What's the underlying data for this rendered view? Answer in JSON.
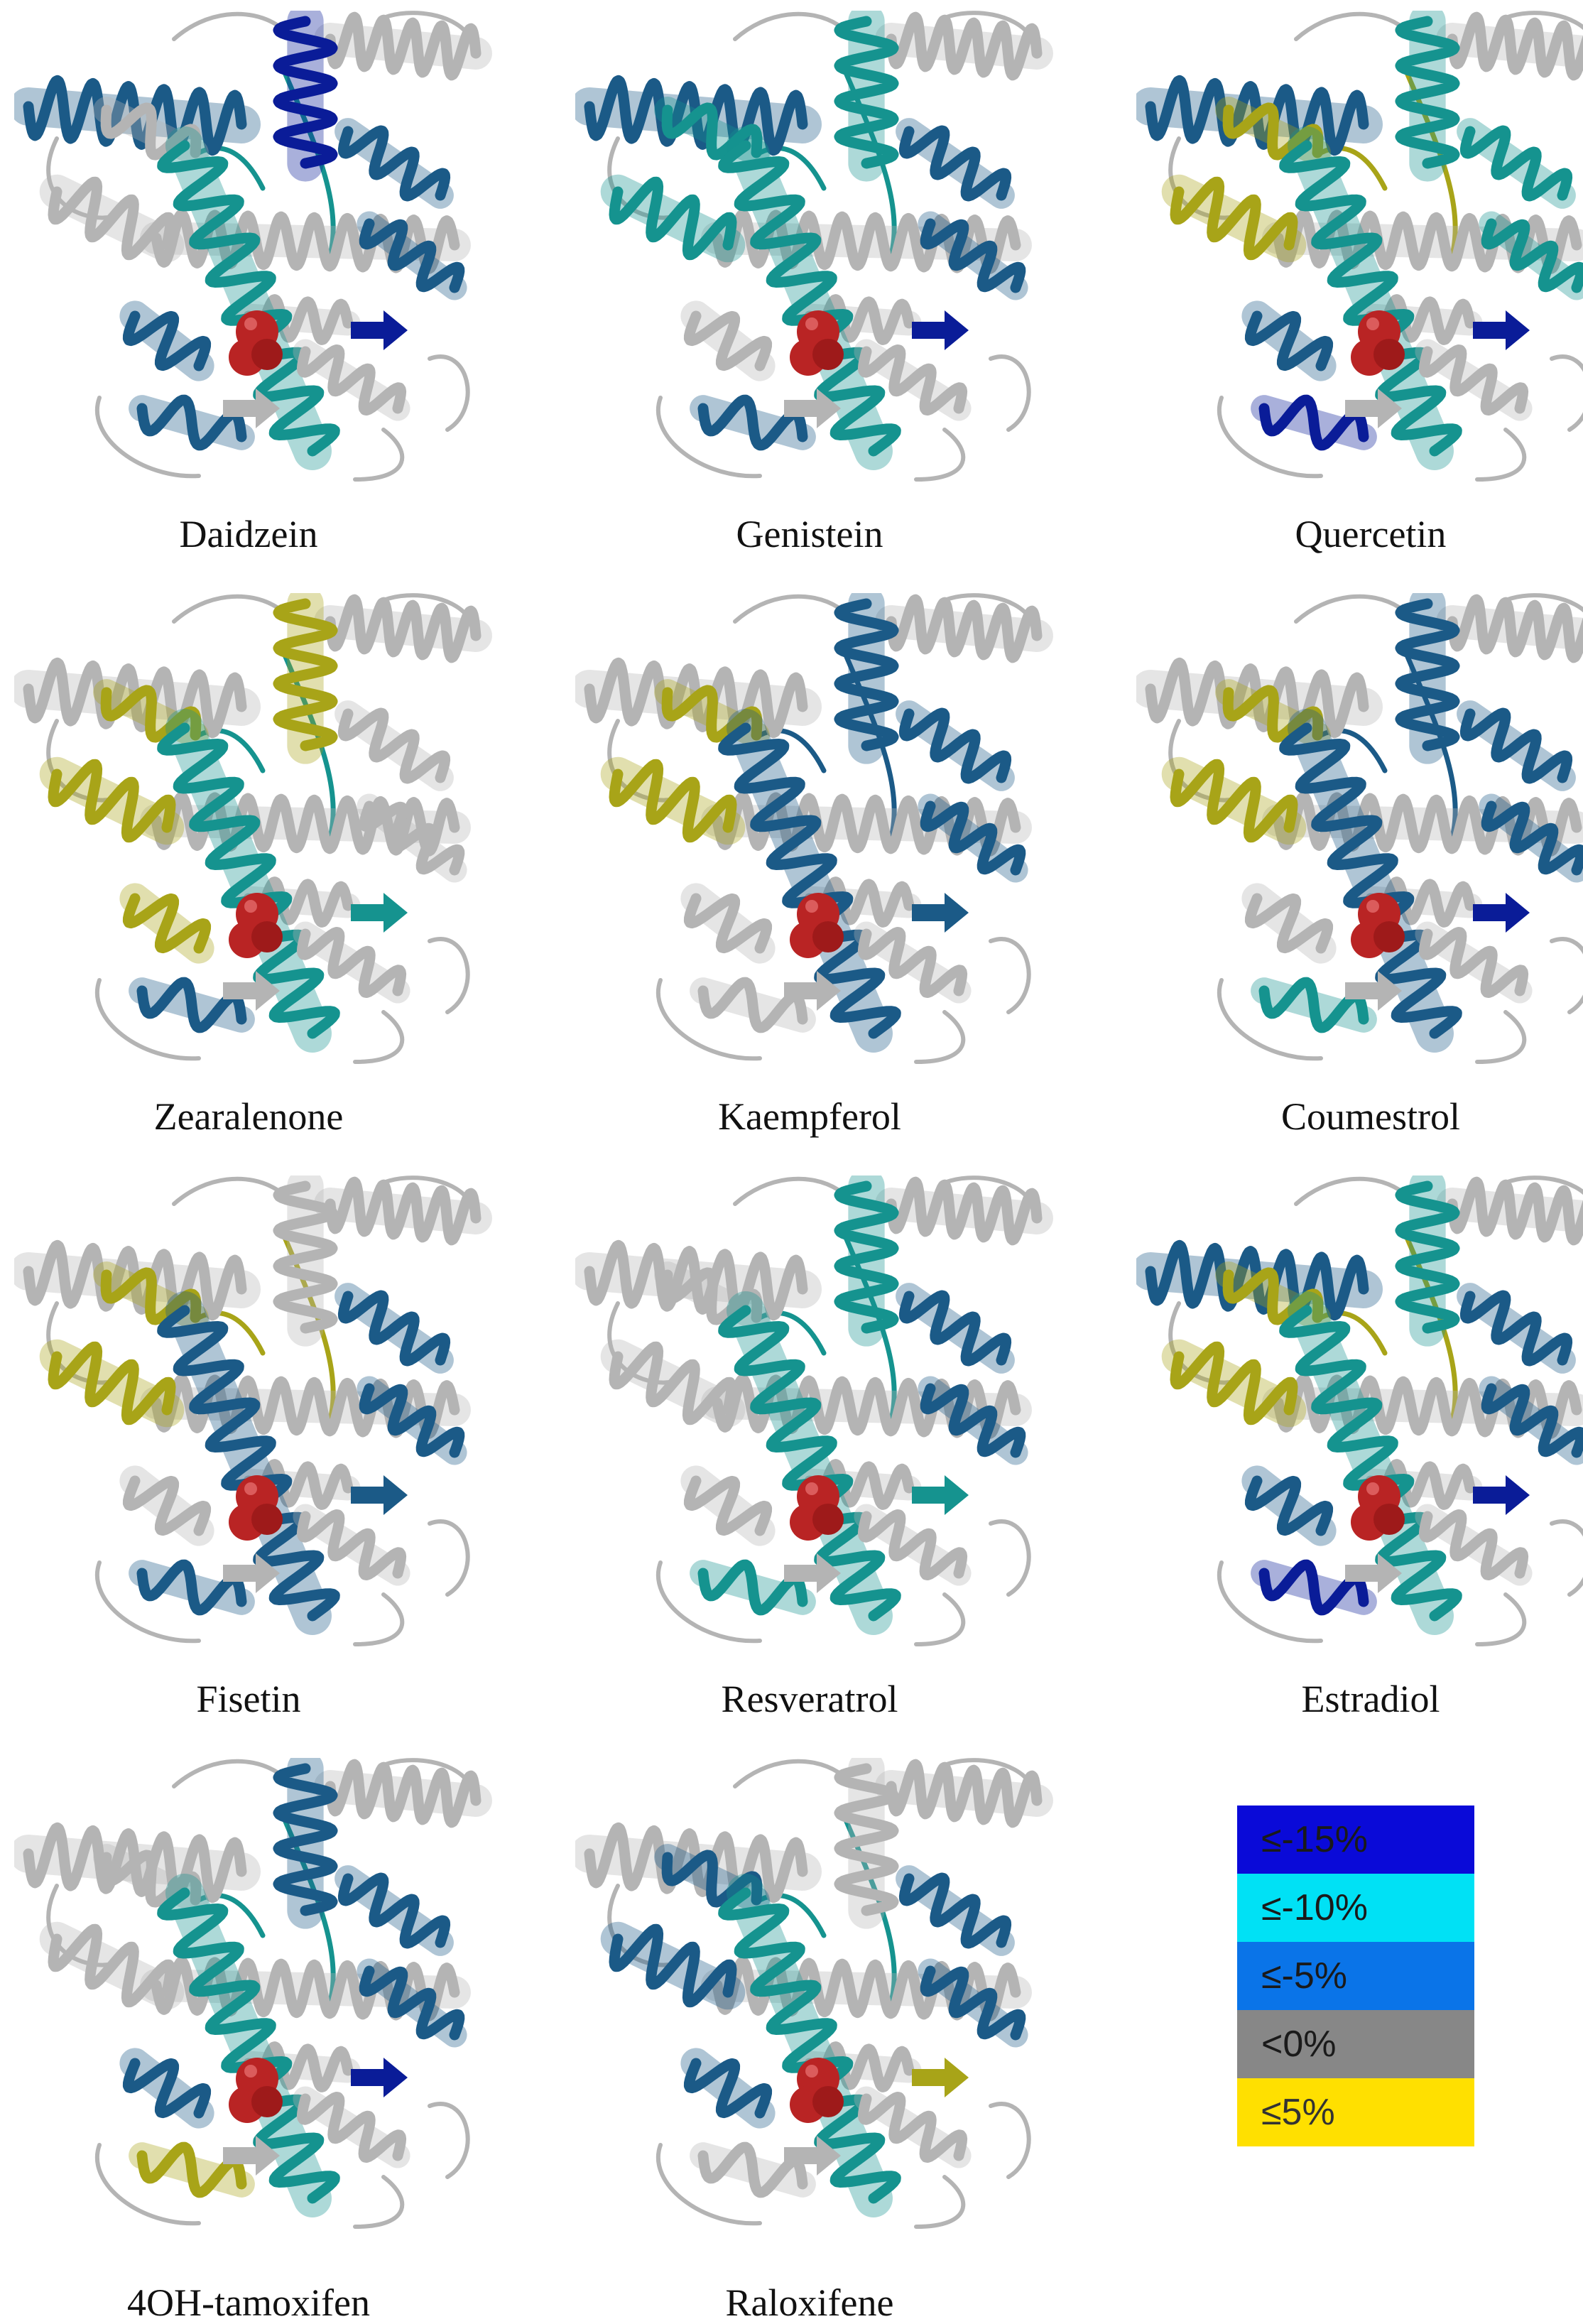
{
  "colors": {
    "gray": "#b4b4b4",
    "teal": "#15938f",
    "blue": "#1b5a87",
    "navy": "#0a1c98",
    "olive": "#a8a418",
    "ligand": "#b92424"
  },
  "panels": [
    {
      "label": "Daidzein",
      "tones": {
        "top": "blue",
        "center": "navy",
        "left": "gray",
        "main": "teal",
        "right": "blue",
        "low": "blue",
        "loop": "teal",
        "strand": "navy",
        "coil": "blue"
      }
    },
    {
      "label": "Genistein",
      "tones": {
        "top": "blue",
        "center": "teal",
        "left": "teal",
        "main": "teal",
        "right": "blue",
        "low": "gray",
        "loop": "teal",
        "strand": "navy",
        "coil": "blue"
      }
    },
    {
      "label": "Quercetin",
      "tones": {
        "top": "blue",
        "center": "teal",
        "left": "olive",
        "main": "teal",
        "right": "teal",
        "low": "blue",
        "loop": "olive",
        "strand": "navy",
        "coil": "navy"
      }
    },
    {
      "label": "Zearalenone",
      "tones": {
        "top": "gray",
        "center": "olive",
        "left": "olive",
        "main": "teal",
        "right": "gray",
        "low": "olive",
        "loop": "teal",
        "strand": "teal",
        "coil": "blue"
      }
    },
    {
      "label": "Kaempferol",
      "tones": {
        "top": "gray",
        "center": "blue",
        "left": "olive",
        "main": "blue",
        "right": "blue",
        "low": "gray",
        "loop": "blue",
        "strand": "blue",
        "coil": "gray"
      }
    },
    {
      "label": "Coumestrol",
      "tones": {
        "top": "gray",
        "center": "blue",
        "left": "olive",
        "main": "blue",
        "right": "blue",
        "low": "gray",
        "loop": "blue",
        "strand": "navy",
        "coil": "teal"
      }
    },
    {
      "label": "Fisetin",
      "tones": {
        "top": "gray",
        "center": "gray",
        "left": "olive",
        "main": "blue",
        "right": "blue",
        "low": "gray",
        "loop": "olive",
        "strand": "blue",
        "coil": "blue"
      }
    },
    {
      "label": "Resveratrol",
      "tones": {
        "top": "gray",
        "center": "teal",
        "left": "gray",
        "main": "teal",
        "right": "blue",
        "low": "gray",
        "loop": "teal",
        "strand": "teal",
        "coil": "teal"
      }
    },
    {
      "label": "Estradiol",
      "tones": {
        "top": "blue",
        "center": "teal",
        "left": "olive",
        "main": "teal",
        "right": "blue",
        "low": "blue",
        "loop": "olive",
        "strand": "navy",
        "coil": "navy"
      }
    },
    {
      "label": "4OH-tamoxifen",
      "tones": {
        "top": "gray",
        "center": "blue",
        "left": "gray",
        "main": "teal",
        "right": "blue",
        "low": "blue",
        "loop": "teal",
        "strand": "navy",
        "coil": "olive"
      }
    },
    {
      "label": "Raloxifene",
      "tones": {
        "top": "gray",
        "center": "gray",
        "left": "blue",
        "main": "teal",
        "right": "blue",
        "low": "blue",
        "loop": "teal",
        "strand": "olive",
        "coil": "gray"
      }
    }
  ],
  "legend": [
    {
      "label": "≤-15%",
      "color": "#0a0ad8",
      "text": "#1a1a1a"
    },
    {
      "label": "≤-10%",
      "color": "#00e1f5",
      "text": "#1a1a1a"
    },
    {
      "label": "≤-5%",
      "color": "#0a74e8",
      "text": "#1a1a1a"
    },
    {
      "label": "<0%",
      "color": "#878787",
      "text": "#1a1a1a"
    },
    {
      "label": "≤5%",
      "color": "#ffe000",
      "text": "#333333"
    }
  ]
}
